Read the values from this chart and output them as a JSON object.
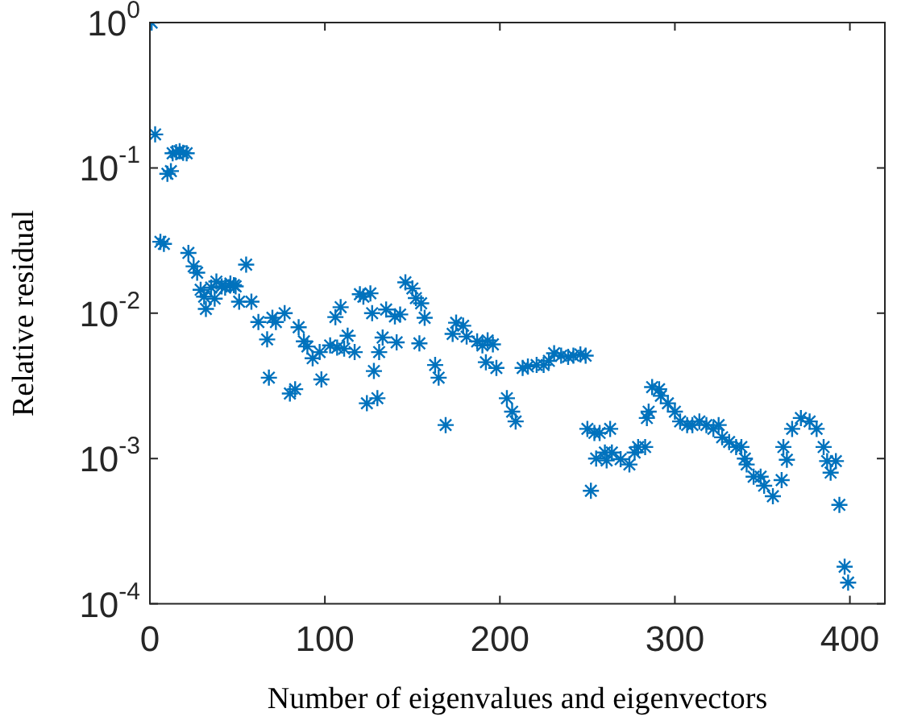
{
  "chart_data": {
    "type": "scatter",
    "xlabel": "Number of eigenvalues and eigenvectors",
    "ylabel": "Relative residual",
    "log": "y",
    "grid": false,
    "marker": "cross",
    "xlim": [
      0,
      420
    ],
    "xticks": [
      0,
      100,
      200,
      300,
      400
    ],
    "ylim": [
      0.0001,
      1
    ],
    "yticks": [
      {
        "value": 0.0001,
        "label": "10$^{-4}$"
      },
      {
        "value": 0.001,
        "label": "10$^{-3}$"
      },
      {
        "value": 0.01,
        "label": "10$^{-2}$"
      },
      {
        "value": 0.1,
        "label": "10$^{-1}$"
      },
      {
        "value": 1,
        "label": "10$^{0}$"
      }
    ],
    "series": [
      {
        "color": "#0072bd",
        "x": [
          1,
          3,
          6,
          8,
          10,
          12,
          13,
          15,
          17,
          19,
          21,
          22,
          25,
          27,
          29,
          31,
          32,
          35,
          37,
          38,
          41,
          43,
          46,
          48,
          49,
          51,
          55,
          58,
          62,
          67,
          68,
          70,
          72,
          77,
          80,
          83,
          85,
          88,
          90,
          93,
          97,
          98,
          103,
          106,
          107,
          109,
          111,
          113,
          117,
          120,
          122,
          124,
          126,
          127,
          128,
          130,
          131,
          133,
          135,
          140,
          141,
          143,
          146,
          150,
          152,
          154,
          155,
          157,
          163,
          165,
          169,
          173,
          175,
          179,
          181,
          187,
          190,
          192,
          193,
          196,
          198,
          204,
          207,
          209,
          213,
          216,
          221,
          225,
          228,
          231,
          235,
          239,
          242,
          246,
          249,
          250,
          252,
          254,
          255,
          257,
          260,
          261,
          263,
          264,
          269,
          274,
          277,
          279,
          283,
          284,
          285,
          287,
          291,
          292,
          296,
          300,
          303,
          307,
          310,
          314,
          318,
          322,
          325,
          327,
          331,
          335,
          338,
          340,
          341,
          345,
          349,
          351,
          356,
          361,
          362,
          364,
          367,
          372,
          377,
          381,
          385,
          387,
          389,
          392,
          394,
          397,
          399
        ],
        "values": [
          1,
          0.17,
          0.031,
          0.03,
          0.091,
          0.095,
          0.126,
          0.128,
          0.13,
          0.127,
          0.126,
          0.026,
          0.021,
          0.019,
          0.0145,
          0.013,
          0.0107,
          0.015,
          0.0126,
          0.0165,
          0.0153,
          0.015,
          0.016,
          0.0156,
          0.0153,
          0.012,
          0.0216,
          0.012,
          0.0087,
          0.0066,
          0.0036,
          0.0093,
          0.0087,
          0.01,
          0.0028,
          0.003,
          0.008,
          0.0064,
          0.0059,
          0.0049,
          0.0054,
          0.0035,
          0.006,
          0.0094,
          0.0058,
          0.011,
          0.0057,
          0.007,
          0.0054,
          0.0135,
          0.013,
          0.0024,
          0.0137,
          0.01,
          0.004,
          0.0026,
          0.0054,
          0.0068,
          0.0106,
          0.0095,
          0.0063,
          0.0098,
          0.0163,
          0.0148,
          0.0127,
          0.0062,
          0.0117,
          0.0093,
          0.0044,
          0.0036,
          0.0017,
          0.0072,
          0.0086,
          0.0082,
          0.0069,
          0.0064,
          0.006,
          0.0046,
          0.0065,
          0.0061,
          0.0042,
          0.0026,
          0.0021,
          0.0018,
          0.0042,
          0.0043,
          0.0044,
          0.0044,
          0.0047,
          0.0053,
          0.0051,
          0.005,
          0.0051,
          0.0052,
          0.0051,
          0.0016,
          0.0006,
          0.0015,
          0.001,
          0.0015,
          0.0011,
          0.00097,
          0.0016,
          0.0011,
          0.00099,
          0.00091,
          0.0011,
          0.0012,
          0.0012,
          0.0019,
          0.0021,
          0.0031,
          0.003,
          0.0027,
          0.0024,
          0.0021,
          0.0018,
          0.0017,
          0.0017,
          0.0018,
          0.0017,
          0.0016,
          0.0017,
          0.0014,
          0.0013,
          0.0012,
          0.0012,
          0.001,
          0.00091,
          0.00075,
          0.00075,
          0.00065,
          0.00055,
          0.00071,
          0.0012,
          0.00098,
          0.0016,
          0.0019,
          0.0018,
          0.0016,
          0.0012,
          0.00096,
          0.0008,
          0.00096,
          0.00048,
          0.00018,
          0.00014
        ]
      }
    ]
  }
}
